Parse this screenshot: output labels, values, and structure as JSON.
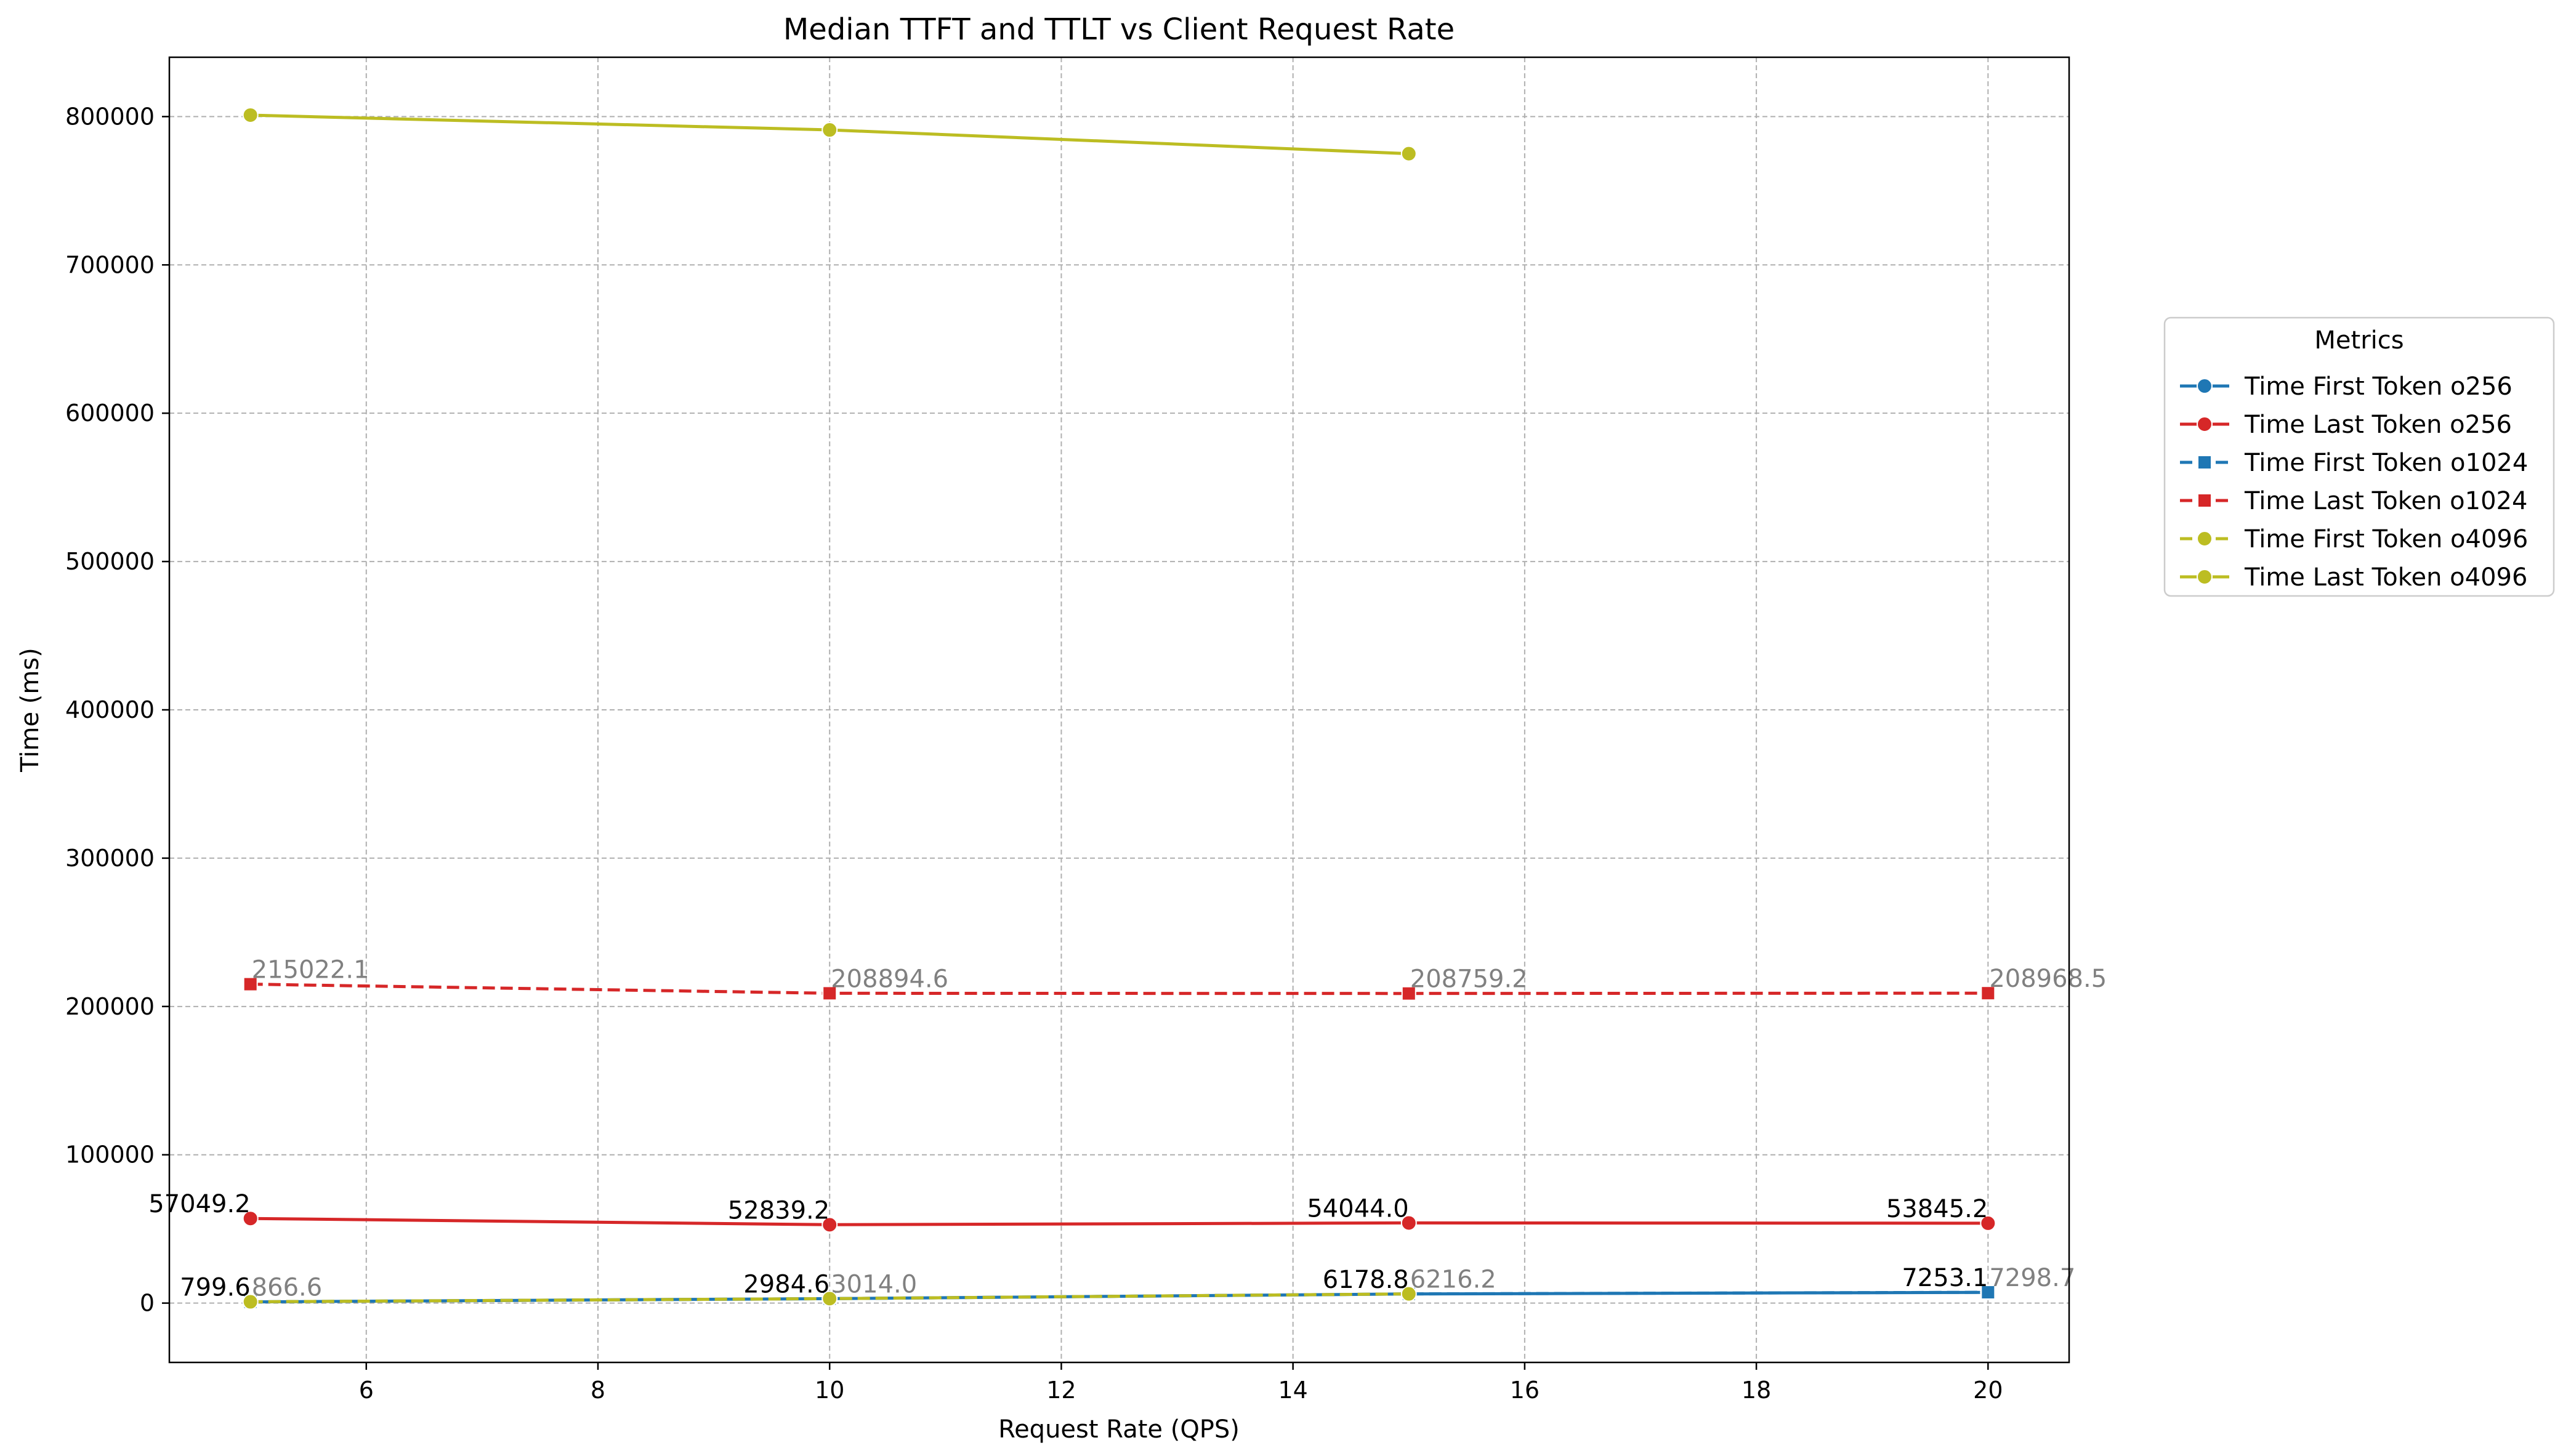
{
  "chart_data": {
    "type": "line",
    "title": "Median TTFT and TTLT vs Client Request Rate",
    "xlabel": "Request Rate (QPS)",
    "ylabel": "Time (ms)",
    "xlim": [
      4.3,
      20.7
    ],
    "ylim": [
      -40000,
      840000
    ],
    "xticks": [
      6,
      8,
      10,
      12,
      14,
      16,
      18,
      20
    ],
    "yticks": [
      0,
      100000,
      200000,
      300000,
      400000,
      500000,
      600000,
      700000,
      800000
    ],
    "grid": true,
    "legend": {
      "title": "Metrics",
      "placement": "right, outside plot"
    },
    "series": [
      {
        "name": "Time First Token o256",
        "color": "#1f77b4",
        "linestyle": "solid",
        "marker": "circle",
        "x": [
          5,
          10,
          15,
          20
        ],
        "y": [
          799.6,
          2984.6,
          6178.8,
          7253.1
        ]
      },
      {
        "name": "Time Last Token o256",
        "color": "#d62728",
        "linestyle": "solid",
        "marker": "circle",
        "x": [
          5,
          10,
          15,
          20
        ],
        "y": [
          57049.2,
          52839.2,
          54044.0,
          53845.2
        ]
      },
      {
        "name": "Time First Token o1024",
        "color": "#1f77b4",
        "linestyle": "dashed",
        "marker": "square",
        "x": [
          5,
          10,
          15,
          20
        ],
        "y": [
          866.6,
          3014.0,
          6216.2,
          7298.7
        ]
      },
      {
        "name": "Time Last Token o1024",
        "color": "#d62728",
        "linestyle": "dashed",
        "marker": "square",
        "x": [
          5,
          10,
          15,
          20
        ],
        "y": [
          215022.1,
          208894.6,
          208759.2,
          208968.5
        ]
      },
      {
        "name": "Time First Token o4096",
        "color": "#bcbd22",
        "linestyle": "dashed",
        "marker": "circle",
        "x": [
          5,
          10,
          15
        ],
        "y": [
          866.6,
          3014.0,
          6216.2
        ]
      },
      {
        "name": "Time Last Token o4096",
        "color": "#bcbd22",
        "linestyle": "solid",
        "marker": "circle",
        "x": [
          5,
          10,
          15
        ],
        "y": [
          801000,
          791000,
          775000
        ]
      }
    ],
    "annotations": [
      {
        "text": "799.6",
        "x": 5,
        "y": 799.6,
        "color": "#000000",
        "side": "left"
      },
      {
        "text": "2984.6",
        "x": 10,
        "y": 2984.6,
        "color": "#000000",
        "side": "left"
      },
      {
        "text": "6178.8",
        "x": 15,
        "y": 6178.8,
        "color": "#000000",
        "side": "left"
      },
      {
        "text": "7253.1",
        "x": 20,
        "y": 7253.1,
        "color": "#000000",
        "side": "left"
      },
      {
        "text": "57049.2",
        "x": 5,
        "y": 57049.2,
        "color": "#000000",
        "side": "left"
      },
      {
        "text": "52839.2",
        "x": 10,
        "y": 52839.2,
        "color": "#000000",
        "side": "left"
      },
      {
        "text": "54044.0",
        "x": 15,
        "y": 54044.0,
        "color": "#000000",
        "side": "left"
      },
      {
        "text": "53845.2",
        "x": 20,
        "y": 53845.2,
        "color": "#000000",
        "side": "left"
      },
      {
        "text": "866.6",
        "x": 5,
        "y": 866.6,
        "color": "#808080",
        "side": "right"
      },
      {
        "text": "3014.0",
        "x": 10,
        "y": 3014.0,
        "color": "#808080",
        "side": "right"
      },
      {
        "text": "6216.2",
        "x": 15,
        "y": 6216.2,
        "color": "#808080",
        "side": "right"
      },
      {
        "text": "7298.7",
        "x": 20,
        "y": 7298.7,
        "color": "#808080",
        "side": "right"
      },
      {
        "text": "215022.1",
        "x": 5,
        "y": 215022.1,
        "color": "#808080",
        "side": "right"
      },
      {
        "text": "208894.6",
        "x": 10,
        "y": 208894.6,
        "color": "#808080",
        "side": "right"
      },
      {
        "text": "208759.2",
        "x": 15,
        "y": 208759.2,
        "color": "#808080",
        "side": "right"
      },
      {
        "text": "208968.5",
        "x": 20,
        "y": 208968.5,
        "color": "#808080",
        "side": "right"
      }
    ]
  }
}
